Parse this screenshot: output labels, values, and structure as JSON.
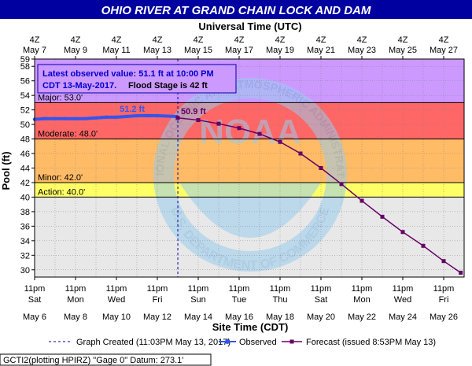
{
  "title": "OHIO RIVER AT GRAND CHAIN LOCK AND DAM",
  "top_axis_title": "Universal Time (UTC)",
  "bottom_axis_title": "Site Time (CDT)",
  "y_axis_title": "Pool (ft)",
  "top_ticks": [
    {
      "line1": "4Z",
      "line2": "May  7"
    },
    {
      "line1": "4Z",
      "line2": "May  9"
    },
    {
      "line1": "4Z",
      "line2": "May 11"
    },
    {
      "line1": "4Z",
      "line2": "May 13"
    },
    {
      "line1": "4Z",
      "line2": "May 15"
    },
    {
      "line1": "4Z",
      "line2": "May 17"
    },
    {
      "line1": "4Z",
      "line2": "May 19"
    },
    {
      "line1": "4Z",
      "line2": "May 21"
    },
    {
      "line1": "4Z",
      "line2": "May 23"
    },
    {
      "line1": "4Z",
      "line2": "May 25"
    },
    {
      "line1": "4Z",
      "line2": "May 27"
    }
  ],
  "bottom_ticks": [
    {
      "line1": "11pm",
      "line2": "Sat",
      "line3": "May 6"
    },
    {
      "line1": "11pm",
      "line2": "Mon",
      "line3": "May 8"
    },
    {
      "line1": "11pm",
      "line2": "Wed",
      "line3": "May 10"
    },
    {
      "line1": "11pm",
      "line2": "Fri",
      "line3": "May 12"
    },
    {
      "line1": "11pm",
      "line2": "Sun",
      "line3": "May 14"
    },
    {
      "line1": "11pm",
      "line2": "Tue",
      "line3": "May 16"
    },
    {
      "line1": "11pm",
      "line2": "Thu",
      "line3": "May 18"
    },
    {
      "line1": "11pm",
      "line2": "Sat",
      "line3": "May 20"
    },
    {
      "line1": "11pm",
      "line2": "Mon",
      "line3": "May 22"
    },
    {
      "line1": "11pm",
      "line2": "Wed",
      "line3": "May 24"
    },
    {
      "line1": "11pm",
      "line2": "Fri",
      "line3": "May 26"
    }
  ],
  "info_box": {
    "line1": "Latest observed value: 51.1 ft at 10:00 PM",
    "line2_prefix": "CDT 13-May-2017.",
    "line2_suffix": "Flood Stage is 42 ft"
  },
  "annotations": {
    "observed_peak": "51.2 ft",
    "forecast_start": "50.9 ft"
  },
  "watermark": {
    "agency_text": "NATIONAL OCEANIC AND ATMOSPHERIC ADMINISTRATION",
    "dept_text": "U.S. DEPARTMENT OF COMMERCE",
    "logo_text": "NOAA"
  },
  "legend": {
    "graph_created": "Graph Created (11:03PM May 13, 2017)",
    "observed": "Observed",
    "forecast": "Forecast (issued 8:53PM May 13)"
  },
  "footer": "GCTI2(plotting HPIRZ) \"Gage 0\" Datum: 273.1'",
  "colors": {
    "title_bg": "#0000a0",
    "plot_bg": "#e8e8e8",
    "major": "#cc99ff",
    "moderate": "#ff6666",
    "minor": "#ffbb66",
    "action": "#ffff66",
    "observed": "#3355ee",
    "forecast": "#660066",
    "watermark": "#99ccee"
  },
  "chart_data": {
    "type": "line",
    "title": "OHIO RIVER AT GRAND CHAIN LOCK AND DAM",
    "xlabel": "Site Time (CDT)",
    "ylabel": "Pool (ft)",
    "ylim": [
      29,
      59
    ],
    "xlim": [
      "May 6 2017 11pm CDT",
      "May 27 2017 11pm CDT"
    ],
    "grid": true,
    "y_ticks": [
      30,
      32,
      34,
      36,
      38,
      40,
      42,
      44,
      46,
      48,
      50,
      52,
      54,
      56,
      58,
      59
    ],
    "categories_stages": [
      {
        "name": "Major",
        "label": "Major: 53.0'",
        "value": 53.0
      },
      {
        "name": "Moderate",
        "label": "Moderate: 48.0'",
        "value": 48.0
      },
      {
        "name": "Minor",
        "label": "Minor: 42.0'",
        "value": 42.0
      },
      {
        "name": "Action",
        "label": "Action: 40.0'",
        "value": 40.0
      }
    ],
    "graph_created": "May 13 2017 11:03pm CDT",
    "series": [
      {
        "name": "Observed",
        "x": [
          "May 6 11pm",
          "May 7 11am",
          "May 7 11pm",
          "May 8 11am",
          "May 8 11pm",
          "May 9 11am",
          "May 9 11pm",
          "May 10 11am",
          "May 10 11pm",
          "May 11 11am",
          "May 11 11pm",
          "May 12 11am",
          "May 12 11pm",
          "May 13 10pm"
        ],
        "y": [
          50.7,
          50.8,
          50.8,
          50.8,
          50.8,
          50.8,
          50.9,
          51.0,
          51.0,
          51.1,
          51.2,
          51.2,
          51.2,
          51.1
        ]
      },
      {
        "name": "Forecast",
        "x": [
          "May 13 11pm",
          "May 14 11pm",
          "May 15 11pm",
          "May 16 11pm",
          "May 17 11pm",
          "May 18 11pm",
          "May 19 11pm",
          "May 20 11pm",
          "May 21 11pm",
          "May 22 11pm",
          "May 23 11pm",
          "May 24 11pm",
          "May 25 11pm",
          "May 26 11pm",
          "May 27 7pm"
        ],
        "y": [
          50.9,
          50.6,
          50.1,
          49.5,
          48.7,
          47.6,
          46.0,
          44.0,
          41.8,
          39.5,
          37.3,
          35.2,
          33.3,
          31.2,
          29.6
        ]
      }
    ]
  }
}
